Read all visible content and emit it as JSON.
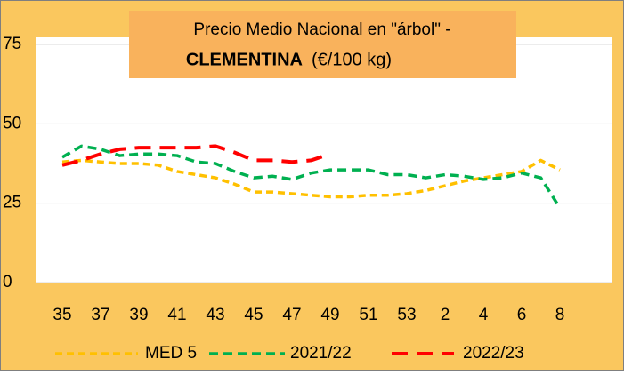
{
  "chart_data": {
    "type": "line",
    "title": "Precio Medio Nacional en \"árbol\" -",
    "subtitle_bold": "CLEMENTINA",
    "unit": "(€/100 kg)",
    "categories": [
      "35",
      null,
      "37",
      null,
      "39",
      null,
      "41",
      null,
      "43",
      null,
      "45",
      null,
      "47",
      null,
      "49",
      null,
      "51",
      null,
      "53",
      null,
      "2",
      null,
      "4",
      null,
      "6",
      null,
      "8"
    ],
    "series": [
      {
        "name": "MED 5",
        "color": "#FFC000",
        "values": [
          38,
          38.5,
          38,
          37.5,
          37.5,
          37,
          35,
          34,
          33,
          31,
          28.5,
          28.5,
          28,
          27.5,
          27,
          27,
          27.5,
          27.5,
          28,
          29,
          30.5,
          32,
          33,
          34,
          35,
          38.5,
          35.5
        ]
      },
      {
        "name": "2021/22",
        "color": "#00B050",
        "values": [
          39.5,
          43,
          42,
          40,
          40.5,
          40.5,
          40,
          38,
          37.5,
          35,
          33,
          33.5,
          32.5,
          34.5,
          35.5,
          35.5,
          35.5,
          34,
          34,
          33,
          34,
          33.5,
          32.5,
          33,
          34.5,
          33,
          23.5
        ]
      },
      {
        "name": "2022/23",
        "color": "#FF0000",
        "values": [
          37,
          38.5,
          40.5,
          42,
          42.5,
          42.5,
          42.5,
          42.5,
          43,
          41,
          38.5,
          38.5,
          38,
          38.5,
          40.5,
          null,
          null,
          null,
          null,
          null,
          null,
          null,
          null,
          null,
          null,
          null,
          null
        ]
      }
    ],
    "ylim": [
      0,
      75
    ],
    "yticks": [
      0,
      25,
      50,
      75
    ],
    "grid": true,
    "legend": "bottom"
  }
}
